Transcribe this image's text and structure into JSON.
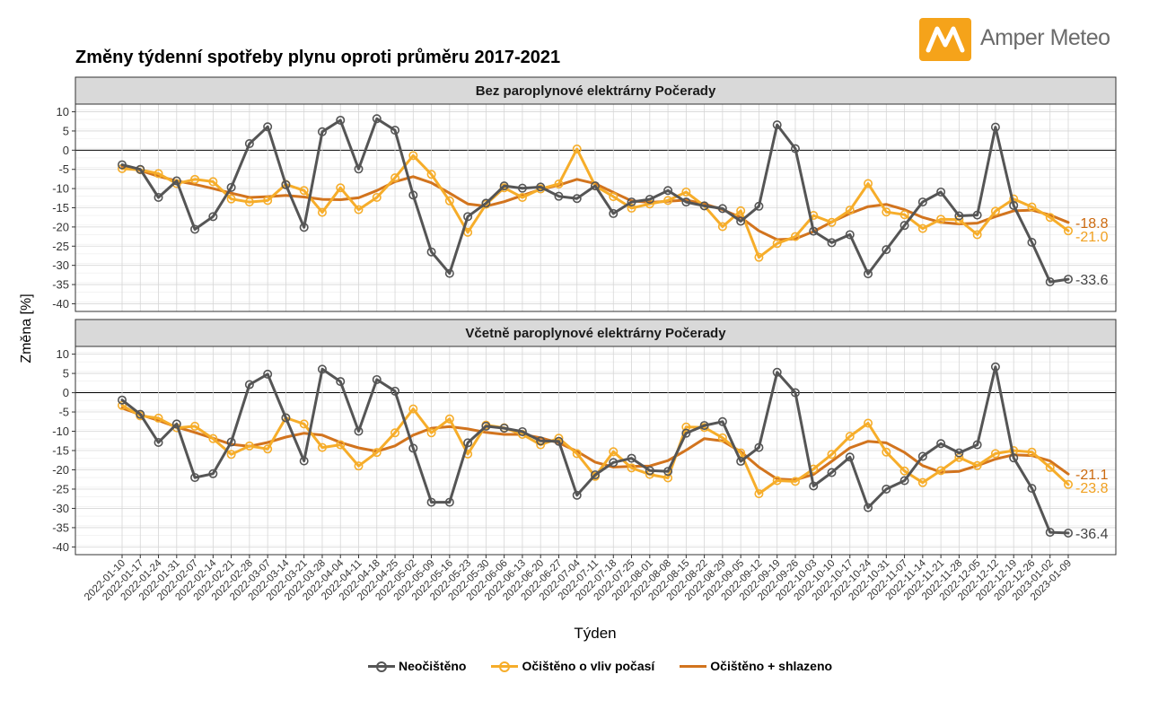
{
  "brand": {
    "name": "Amper Meteo",
    "logo_icon": "amper-meteo-logo-icon",
    "logo_color": "#f5a31a"
  },
  "title": "Změny týdenní spotřeby plynu oproti průměru 2017-2021",
  "chart_data": {
    "type": "line",
    "xlabel": "Týden",
    "ylabel": "Změna [%]",
    "ylim": [
      -42,
      12
    ],
    "yticks": [
      10,
      5,
      0,
      -5,
      -10,
      -15,
      -20,
      -25,
      -30,
      -35,
      -40
    ],
    "grid": true,
    "legend_position": "bottom",
    "x": [
      "2022-01-10",
      "2022-01-17",
      "2022-01-24",
      "2022-01-31",
      "2022-02-07",
      "2022-02-14",
      "2022-02-21",
      "2022-02-28",
      "2022-03-07",
      "2022-03-14",
      "2022-03-21",
      "2022-03-28",
      "2022-04-04",
      "2022-04-11",
      "2022-04-18",
      "2022-04-25",
      "2022-05-02",
      "2022-05-09",
      "2022-05-16",
      "2022-05-23",
      "2022-05-30",
      "2022-06-06",
      "2022-06-13",
      "2022-06-20",
      "2022-06-27",
      "2022-07-04",
      "2022-07-11",
      "2022-07-18",
      "2022-07-25",
      "2022-08-01",
      "2022-08-08",
      "2022-08-15",
      "2022-08-22",
      "2022-08-29",
      "2022-09-05",
      "2022-09-12",
      "2022-09-19",
      "2022-09-26",
      "2022-10-03",
      "2022-10-10",
      "2022-10-17",
      "2022-10-24",
      "2022-10-31",
      "2022-11-07",
      "2022-11-14",
      "2022-11-21",
      "2022-11-28",
      "2022-12-05",
      "2022-12-12",
      "2022-12-19",
      "2022-12-26",
      "2023-01-02",
      "2023-01-09"
    ],
    "series_styles": [
      {
        "name": "Neočištěno",
        "color": "#555555",
        "markers": true
      },
      {
        "name": "Očištěno o vliv počasí",
        "color": "#f6ad2a",
        "markers": true
      },
      {
        "name": "Očištěno + shlazeno",
        "color": "#d2741e",
        "markers": false
      }
    ],
    "panels": [
      {
        "title": "Bez paroplynové elektrárny Počerady",
        "series": [
          {
            "name": "Neočištěno",
            "values": [
              -3.8,
              -5,
              -12.3,
              -8,
              -20.6,
              -17.3,
              -9.7,
              1.7,
              6.1,
              -9,
              -20.1,
              4.8,
              7.8,
              -4.9,
              8.2,
              5.2,
              -11.7,
              -26.5,
              -32.1,
              -17.3,
              -13.8,
              -9.3,
              -9.9,
              -9.6,
              -12,
              -12.6,
              -9.3,
              -16.5,
              -13.5,
              -12.8,
              -10.5,
              -13.5,
              -14.5,
              -15.2,
              -18.5,
              -14.6,
              6.6,
              0.4,
              -21.1,
              -24.1,
              -22,
              -32.2,
              -25.9,
              -19.6,
              -13.5,
              -10.9,
              -17.1,
              -16.9,
              6,
              -14.4,
              -24,
              -34.3,
              -33.6
            ]
          },
          {
            "name": "Očištěno o vliv počasí",
            "values": [
              -4.8,
              -5.1,
              -6.1,
              -8.7,
              -7.6,
              -8.2,
              -12.7,
              -13.5,
              -13.1,
              -8.9,
              -10.5,
              -16.2,
              -9.8,
              -15.5,
              -12.3,
              -7.2,
              -1.4,
              -6.3,
              -13.2,
              -21.4,
              -14.1,
              -9.8,
              -12.3,
              -10.1,
              -8.8,
              0.3,
              -9.3,
              -12.1,
              -15.1,
              -14,
              -13.1,
              -10.9,
              -14.5,
              -19.9,
              -15.8,
              -27.9,
              -24.3,
              -22.5,
              -17,
              -18.8,
              -15.6,
              -8.7,
              -16.1,
              -16.8,
              -20.4,
              -18,
              -18.1,
              -22,
              -15.9,
              -12.7,
              -14.8,
              -17.5,
              -21
            ]
          },
          {
            "name": "Očištěno + shlazeno",
            "values": [
              -4.2,
              -5.3,
              -6.8,
              -8,
              -8.9,
              -10,
              -11.2,
              -12.3,
              -12.1,
              -11.8,
              -12.2,
              -12.8,
              -12.9,
              -12.4,
              -10.5,
              -8.2,
              -6.9,
              -8.5,
              -11.2,
              -14,
              -14.6,
              -13.4,
              -11.8,
              -10.2,
              -9.1,
              -7.6,
              -8.7,
              -11,
              -13.2,
              -13.6,
              -13.3,
              -13,
              -14,
              -15.5,
              -17.5,
              -21,
              -23.3,
              -23.1,
              -21.2,
              -18.7,
              -16.5,
              -14.7,
              -14.1,
              -15.5,
              -17.5,
              -18.8,
              -19.2,
              -19,
              -17.3,
              -15.8,
              -15.6,
              -16.9,
              -18.8
            ]
          }
        ],
        "end_labels": [
          "-33.6",
          "-21.0",
          "-18.8"
        ]
      },
      {
        "title": "Včetně paroplynové elektrárny Počerady",
        "series": [
          {
            "name": "Neočištěno",
            "values": [
              -1.9,
              -5.6,
              -12.9,
              -8.1,
              -22,
              -21,
              -12.8,
              2.1,
              4.8,
              -6.5,
              -17.7,
              6.1,
              2.9,
              -10,
              3.4,
              0.4,
              -14.4,
              -28.4,
              -28.4,
              -13,
              -8.7,
              -9.2,
              -10.1,
              -12.5,
              -12.6,
              -26.6,
              -21.3,
              -18.1,
              -17,
              -20.2,
              -20.4,
              -10.5,
              -8.5,
              -7.5,
              -17.8,
              -14.2,
              5.3,
              0,
              -24.2,
              -20.7,
              -16.7,
              -29.8,
              -25,
              -22.8,
              -16.5,
              -13.2,
              -15.6,
              -13.5,
              6.7,
              -16.9,
              -24.8,
              -36.2,
              -36.4
            ]
          },
          {
            "name": "Očištěno o vliv počasí",
            "values": [
              -3.3,
              -6,
              -6.6,
              -9.1,
              -8.7,
              -11.9,
              -16,
              -13.8,
              -14.6,
              -6.5,
              -8.1,
              -14.2,
              -13.5,
              -19,
              -15.5,
              -10.4,
              -4.2,
              -10.4,
              -6.8,
              -15.9,
              -8.4,
              -9.1,
              -10.8,
              -13.5,
              -11.8,
              -15.8,
              -21.7,
              -15.3,
              -19.5,
              -21.2,
              -22.1,
              -8.9,
              -9,
              -11.7,
              -15.6,
              -26.2,
              -22.8,
              -23,
              -19.8,
              -16,
              -11.3,
              -7.9,
              -15.4,
              -20.3,
              -23.3,
              -20.2,
              -16.8,
              -18.9,
              -15.8,
              -15,
              -15.4,
              -19.4,
              -23.8
            ]
          },
          {
            "name": "Očištěno + shlazeno",
            "values": [
              -4,
              -5.7,
              -7.2,
              -8.9,
              -10.3,
              -11.8,
              -13.4,
              -13.9,
              -12.9,
              -11.5,
              -10.5,
              -11,
              -12.9,
              -14.3,
              -15.2,
              -13.8,
              -11,
              -9.2,
              -8.8,
              -9.4,
              -10.3,
              -10.8,
              -10.8,
              -11.7,
              -13,
              -15.2,
              -18,
              -19.3,
              -19.1,
              -19,
              -17.6,
              -14.9,
              -11.9,
              -12.5,
              -15.3,
              -19.3,
              -22.4,
              -22.6,
              -21.2,
              -17.8,
              -14.3,
              -12.6,
              -13,
              -15.5,
              -18.9,
              -20.6,
              -20.4,
              -18.9,
              -17.2,
              -16.1,
              -16.3,
              -17.7,
              -21.1
            ]
          }
        ],
        "end_labels": [
          "-36.4",
          "-23.8",
          "-21.1"
        ]
      }
    ]
  }
}
